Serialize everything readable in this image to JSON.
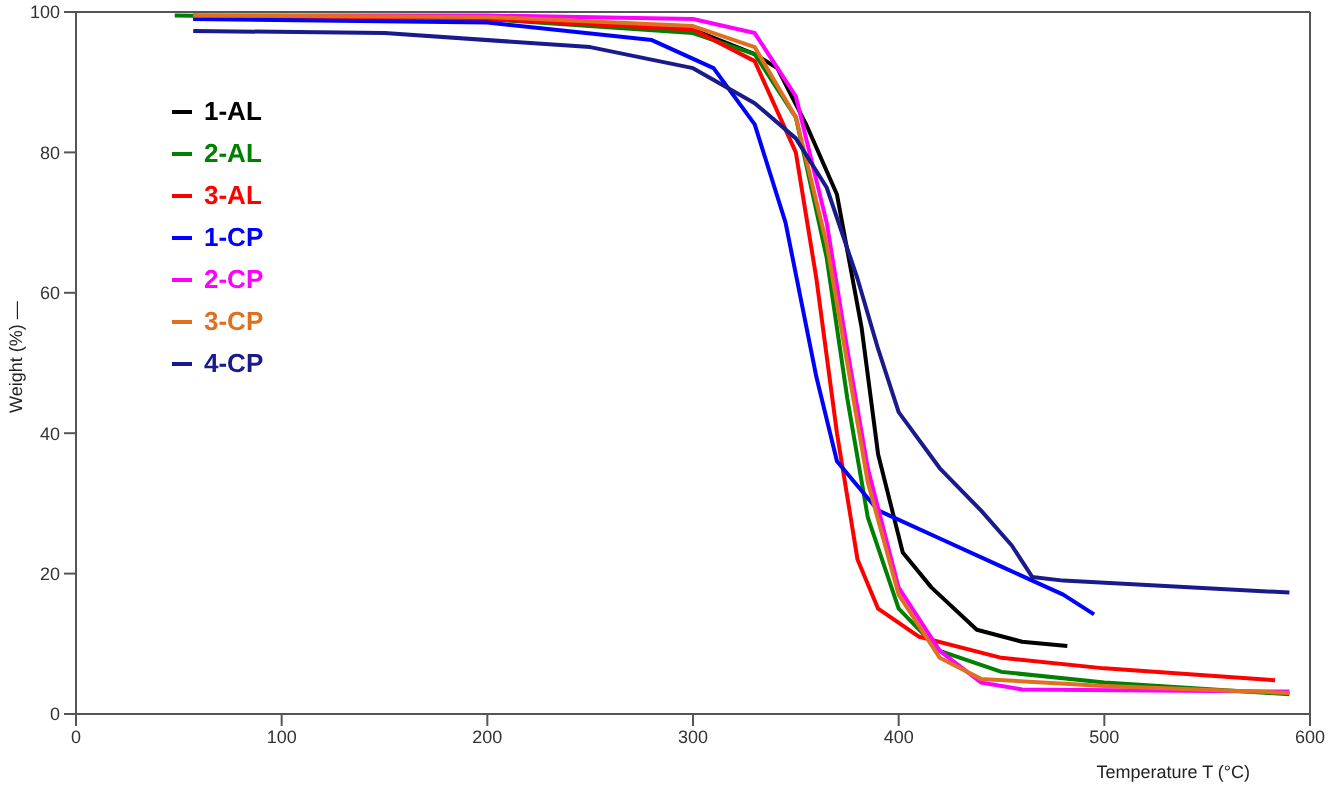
{
  "chart_data": {
    "type": "line",
    "xlabel": "Temperature T (°C)",
    "ylabel": "Weight (%) —",
    "xlim": [
      0,
      600
    ],
    "ylim": [
      0,
      100
    ],
    "xticks": [
      0,
      100,
      200,
      300,
      400,
      500,
      600
    ],
    "yticks": [
      0,
      20,
      40,
      60,
      80,
      100
    ],
    "grid": false,
    "legend": "top left",
    "marker": "none",
    "line_style": "solid",
    "series": [
      {
        "name": "1-AL",
        "color": "#000000",
        "x": [
          57,
          200,
          300,
          330,
          341,
          355,
          370,
          382,
          390,
          402,
          416,
          438,
          460,
          482
        ],
        "values": [
          99.2,
          99,
          97.5,
          94,
          92,
          84,
          74,
          55,
          37,
          23,
          18,
          12,
          10.3,
          9.7
        ]
      },
      {
        "name": "2-AL",
        "color": "#008000",
        "x": [
          48,
          200,
          300,
          330,
          350,
          365,
          375,
          385,
          400,
          420,
          450,
          500,
          590
        ],
        "values": [
          99.5,
          99,
          97,
          94,
          85,
          65,
          45,
          28,
          15,
          9,
          6,
          4.5,
          2.8
        ]
      },
      {
        "name": "3-AL",
        "color": "#ff0000",
        "x": [
          57,
          200,
          300,
          330,
          350,
          360,
          370,
          380,
          390,
          410,
          450,
          500,
          583
        ],
        "values": [
          99,
          99,
          97.5,
          93,
          80,
          62,
          40,
          22,
          15,
          11,
          8,
          6.5,
          4.8
        ]
      },
      {
        "name": "1-CP",
        "color": "#0000ff",
        "x": [
          57,
          200,
          280,
          310,
          330,
          345,
          360,
          370,
          390,
          420,
          450,
          480,
          495
        ],
        "values": [
          99,
          98.5,
          96,
          92,
          84,
          70,
          48,
          36,
          29,
          25,
          21,
          17,
          14.2
        ]
      },
      {
        "name": "2-CP",
        "color": "#ff00ff",
        "x": [
          57,
          200,
          300,
          330,
          350,
          365,
          375,
          385,
          400,
          420,
          440,
          460,
          590
        ],
        "values": [
          99.5,
          99.5,
          99,
          97,
          88,
          70,
          52,
          35,
          18,
          9,
          4.5,
          3.5,
          3.2
        ]
      },
      {
        "name": "3-CP",
        "color": "#e07020",
        "x": [
          57,
          200,
          300,
          330,
          350,
          365,
          375,
          385,
          400,
          420,
          440,
          500,
          590
        ],
        "values": [
          99.5,
          99.3,
          98,
          95,
          85,
          67,
          50,
          33,
          17,
          8,
          5,
          4,
          3
        ]
      },
      {
        "name": "4-CP",
        "color": "#1a1a8c",
        "x": [
          57,
          150,
          250,
          300,
          330,
          350,
          365,
          380,
          390,
          400,
          420,
          440,
          455,
          465,
          480,
          590
        ],
        "values": [
          97.3,
          97,
          95,
          92,
          87,
          82,
          75,
          62,
          52,
          43,
          35,
          29,
          24,
          19.5,
          19,
          17.3
        ]
      }
    ]
  }
}
